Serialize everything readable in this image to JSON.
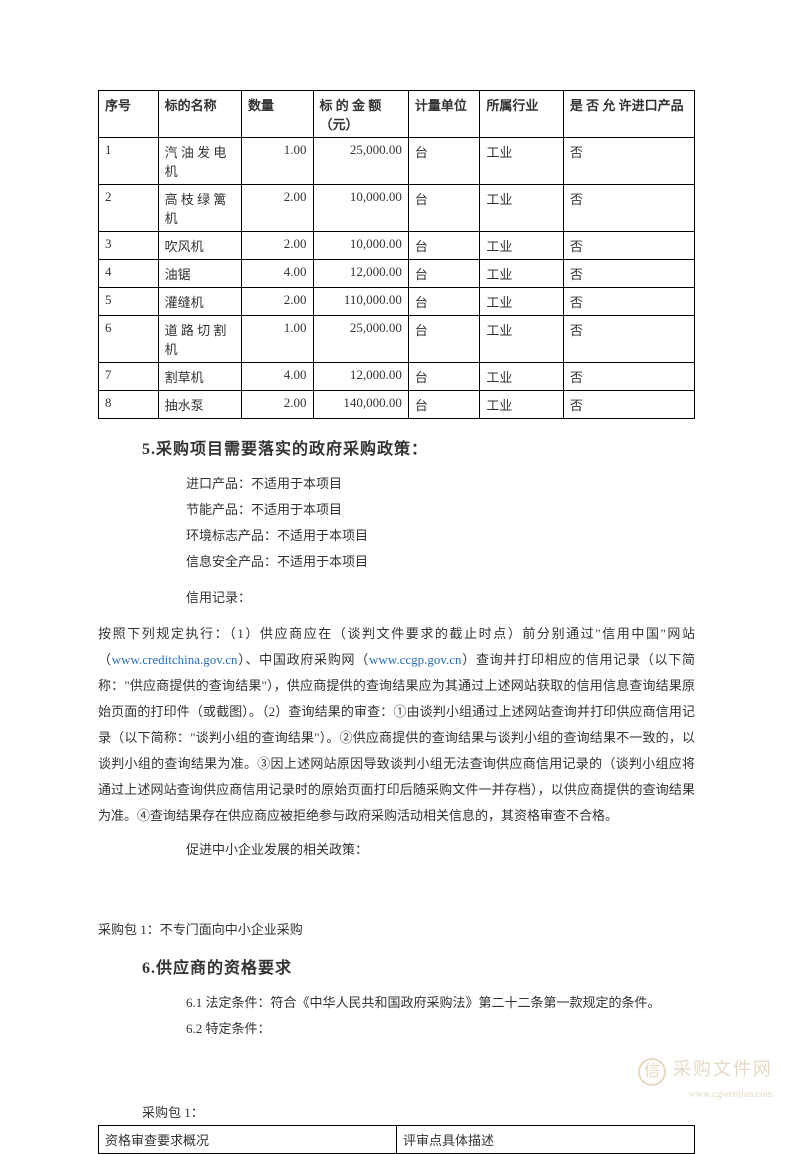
{
  "table": {
    "columns": [
      "序号",
      "标的名称",
      "数量",
      "标 的 金 额（元）",
      "计量单位",
      "所属行业",
      "是 否 允 许进口产品"
    ],
    "col_widths": [
      "10%",
      "14%",
      "12%",
      "16%",
      "12%",
      "14%",
      "22%"
    ],
    "rows": [
      [
        "1",
        "汽 油 发 电机",
        "1.00",
        "25,000.00",
        "台",
        "工业",
        "否"
      ],
      [
        "2",
        "高 枝 绿 篱机",
        "2.00",
        "10,000.00",
        "台",
        "工业",
        "否"
      ],
      [
        "3",
        "吹风机",
        "2.00",
        "10,000.00",
        "台",
        "工业",
        "否"
      ],
      [
        "4",
        "油锯",
        "4.00",
        "12,000.00",
        "台",
        "工业",
        "否"
      ],
      [
        "5",
        "灌缝机",
        "2.00",
        "110,000.00",
        "台",
        "工业",
        "否"
      ],
      [
        "6",
        "道 路 切 割机",
        "1.00",
        "25,000.00",
        "台",
        "工业",
        "否"
      ],
      [
        "7",
        "割草机",
        "4.00",
        "12,000.00",
        "台",
        "工业",
        "否"
      ],
      [
        "8",
        "抽水泵",
        "2.00",
        "140,000.00",
        "台",
        "工业",
        "否"
      ]
    ],
    "numeric_cols": [
      2,
      3
    ]
  },
  "section5": {
    "heading": "5.采购项目需要落实的政府采购政策：",
    "policies": [
      "进口产品：不适用于本项目",
      "节能产品：不适用于本项目",
      "环境标志产品：不适用于本项目",
      "信息安全产品：不适用于本项目",
      "信用记录："
    ],
    "paragraph_parts": [
      "按照下列规定执行：（1）供应商应在（谈判文件要求的截止时点）前分别通过\"信用中国\"网站（",
      "www.creditchina.gov.cn",
      "）、中国政府采购网（",
      "www.ccgp.gov.cn",
      "）查询并打印相应的信用记录（以下简称：\"供应商提供的查询结果\"），供应商提供的查询结果应为其通过上述网站获取的信用信息查询结果原始页面的打印件（或截图）。（2）查询结果的审查：①由谈判小组通过上述网站查询并打印供应商信用记录（以下简称：\"谈判小组的查询结果\"）。②供应商提供的查询结果与谈判小组的查询结果不一致的，以谈判小组的查询结果为准。③因上述网站原因导致谈判小组无法查询供应商信用记录的（谈判小组应将通过上述网站查询供应商信用记录时的原始页面打印后随采购文件一并存档），以供应商提供的查询结果为准。④查询结果存在供应商应被拒绝参与政府采购活动相关信息的，其资格审查不合格。"
    ],
    "sme_policy": "促进中小企业发展的相关政策：",
    "pkg1": "采购包 1：不专门面向中小企业采购"
  },
  "section6": {
    "heading": "6.供应商的资格要求",
    "line1": "6.1 法定条件：符合《中华人民共和国政府采购法》第二十二条第一款规定的条件。",
    "line2": "6.2 特定条件：",
    "pkg_label": "采购包 1：",
    "qual_cols": [
      "资格审查要求概况",
      "评审点具体描述"
    ]
  },
  "watermark": {
    "icon": "信",
    "title": "采购文件网",
    "url": "www.cgwenjian.com"
  },
  "colors": {
    "text": "#333333",
    "border": "#000000",
    "link": "#2a6fb5",
    "background": "#ffffff",
    "watermark": "#b08a4a"
  },
  "typography": {
    "body_fontsize": 13,
    "heading_fontsize": 16,
    "font_family": "SimSun"
  }
}
